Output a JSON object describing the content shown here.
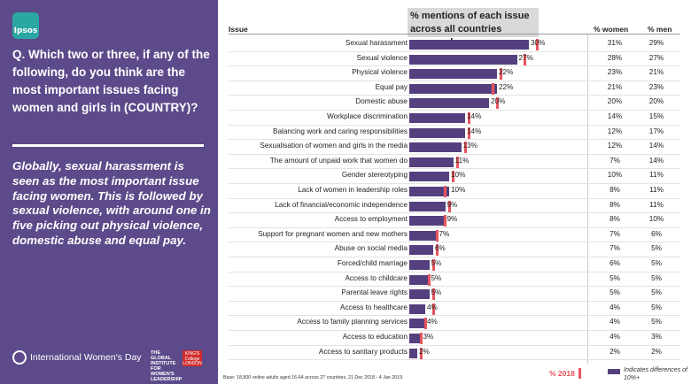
{
  "brand": {
    "logo_text": "Ipsos"
  },
  "question": "Q. Which two or three, if any of the following, do you think are the most important issues facing women and girls in (COUNTRY)?",
  "summary": "Globally, sexual harassment is seen as the most important issue facing women. This is followed by sexual violence, with around one in five picking out physical violence, domestic abuse and equal pay.",
  "footer_left": {
    "iwd_text": "International Women's Day",
    "partner1": "THE GLOBAL INSTITUTE FOR WOMEN'S LEADERSHIP",
    "partner2": "KING'S College LONDON"
  },
  "base_note": "Base: 18,800 online adults aged 16-64 across 27 countries,  21 Dec 2018 - 4 Jan  2019",
  "legend": {
    "marker_label": "% 2018",
    "diff_label": "Indicates differences of 10%+"
  },
  "headers": {
    "issue": "Issue",
    "main": "% mentions of each issue across all countries surveyed",
    "women": "% women",
    "men": "% men"
  },
  "colors": {
    "panel": "#5c4a8a",
    "bar": "#54407e",
    "marker_2018": "#e8545d",
    "logo": "#2aa7a3"
  },
  "chart_data": {
    "type": "bar",
    "orientation": "horizontal",
    "categories": [
      "Sexual harassment",
      "Sexual violence",
      "Physical violence",
      "Equal pay",
      "Domestic abuse",
      "Workplace discrimination",
      "Balancing work and caring responsibilities",
      "Sexualisation of women and girls in the media",
      "The amount of unpaid work that women do",
      "Gender stereotyping",
      "Lack of women in leadership roles",
      "Lack of financial/economic independence",
      "Access to employment",
      "Support for pregnant women and new mothers",
      "Abuse on social media",
      "Forced/child marriage",
      "Access to childcare",
      "Parental leave rights",
      "Access to healthcare",
      "Access to family planning services",
      "Access to education",
      "Access to sanitary products"
    ],
    "value_labels": [
      "30%",
      "27%",
      "22%",
      "22%",
      "20%",
      "14%",
      "14%",
      "13%",
      "11%",
      "10%",
      "10%",
      "9%",
      "9%",
      "7%",
      "6%",
      "5%",
      "5%",
      "5%",
      "4%",
      "4%",
      "3%",
      "2%"
    ],
    "series": [
      {
        "name": "",
        "values": [
          30,
          27,
          22,
          22,
          20,
          14,
          14,
          13,
          11,
          10,
          10,
          9,
          9,
          7,
          6,
          5,
          5,
          5,
          4,
          4,
          3,
          2
        ]
      },
      {
        "name": "% 2018",
        "values": [
          32,
          29,
          23,
          21,
          22,
          15,
          15,
          14,
          12,
          11,
          9,
          10,
          9,
          7,
          7,
          6,
          5,
          6,
          6,
          4,
          3,
          3
        ]
      },
      {
        "name": "% women",
        "values": [
          "31%",
          "28%",
          "23%",
          "21%",
          "20%",
          "14%",
          "12%",
          "12%",
          "7%",
          "10%",
          "8%",
          "8%",
          "8%",
          "7%",
          "7%",
          "6%",
          "5%",
          "5%",
          "4%",
          "4%",
          "4%",
          "2%"
        ]
      },
      {
        "name": "% men",
        "values": [
          "29%",
          "27%",
          "21%",
          "23%",
          "20%",
          "15%",
          "17%",
          "14%",
          "14%",
          "11%",
          "11%",
          "11%",
          "10%",
          "6%",
          "5%",
          "5%",
          "5%",
          "5%",
          "5%",
          "5%",
          "3%",
          "2%"
        ]
      }
    ],
    "xlim": [
      0,
      40
    ]
  }
}
